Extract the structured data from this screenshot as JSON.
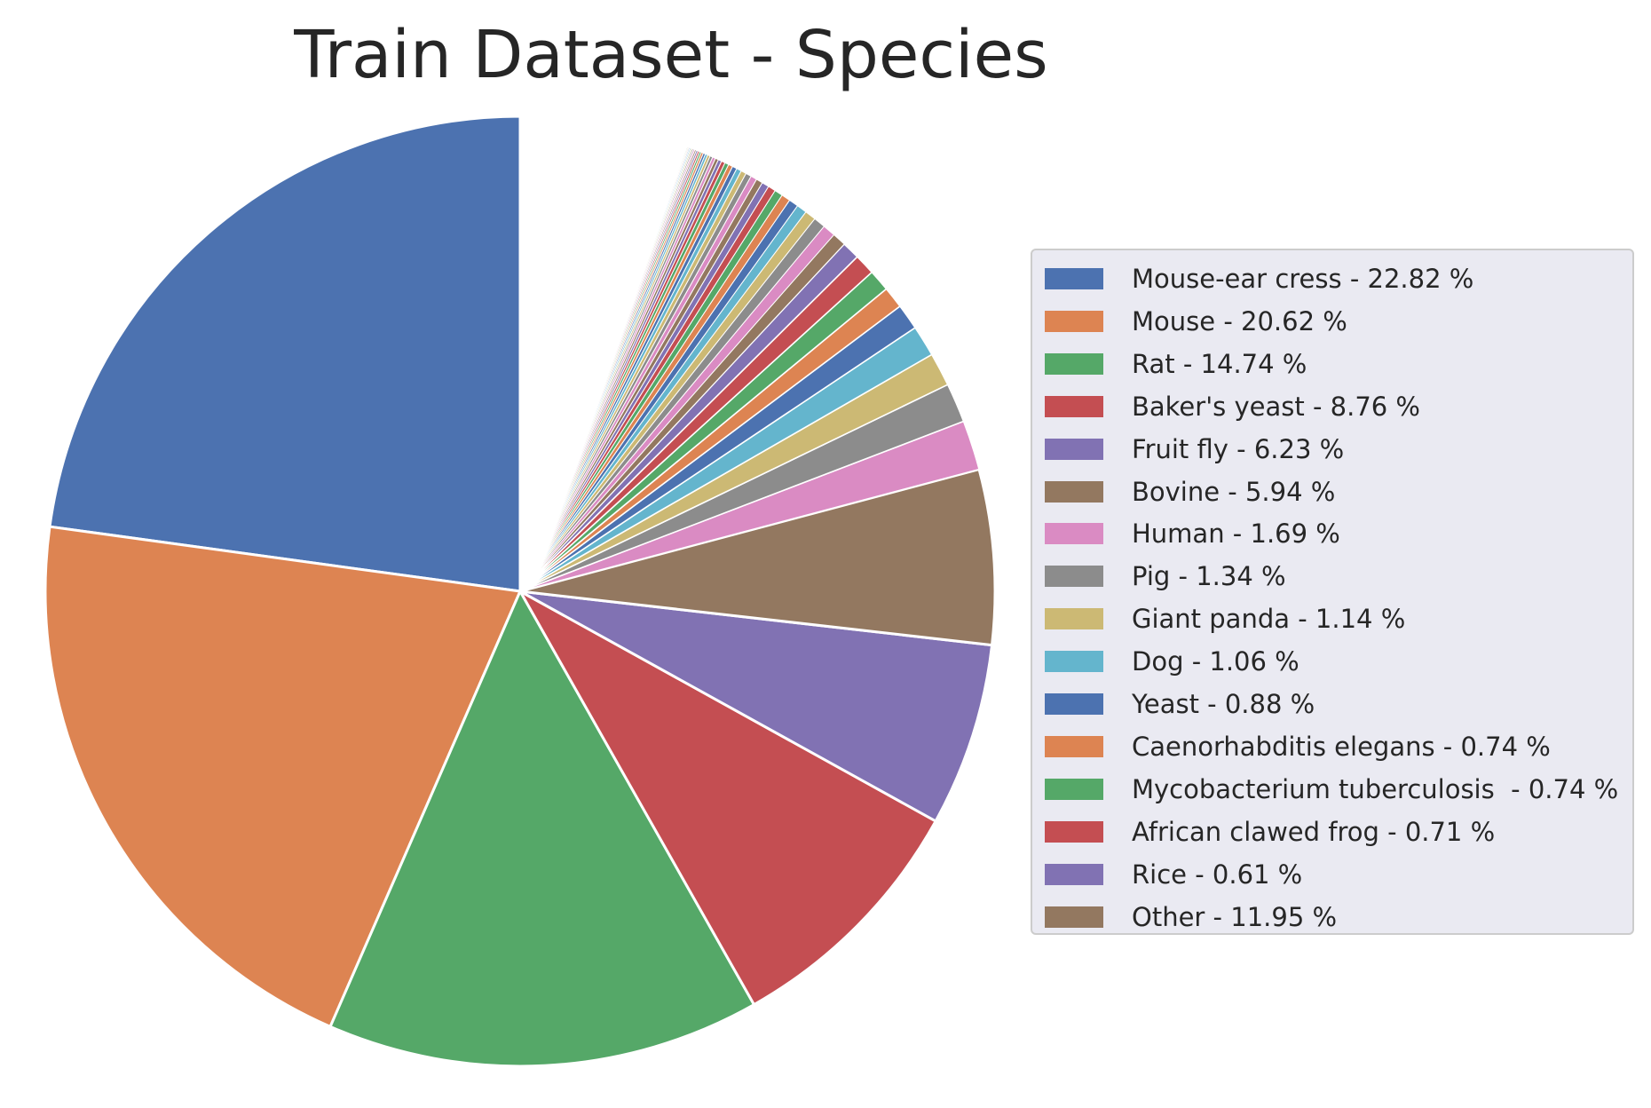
{
  "chart_data": {
    "type": "pie",
    "title": "Train Dataset - Species",
    "legend_position": "right",
    "start_angle_deg": 90,
    "direction": "counterclockwise",
    "slices": [
      {
        "label": "Mouse-ear cress - 22.82 %",
        "value": 22.82,
        "color": "#4c72b0"
      },
      {
        "label": "Mouse - 20.62 %",
        "value": 20.62,
        "color": "#dd8452"
      },
      {
        "label": "Rat - 14.74 %",
        "value": 14.74,
        "color": "#55a868"
      },
      {
        "label": "Baker's yeast - 8.76 %",
        "value": 8.76,
        "color": "#c44e52"
      },
      {
        "label": "Fruit fly - 6.23 %",
        "value": 6.23,
        "color": "#8172b3"
      },
      {
        "label": "Bovine - 5.94 %",
        "value": 5.94,
        "color": "#937860"
      },
      {
        "label": "Human - 1.69 %",
        "value": 1.69,
        "color": "#da8bc3"
      },
      {
        "label": "Pig - 1.34 %",
        "value": 1.34,
        "color": "#8c8c8c"
      },
      {
        "label": "Giant panda - 1.14 %",
        "value": 1.14,
        "color": "#ccb974"
      },
      {
        "label": "Dog - 1.06 %",
        "value": 1.06,
        "color": "#64b5cd"
      },
      {
        "label": "Yeast - 0.88 %",
        "value": 0.88,
        "color": "#4c72b0"
      },
      {
        "label": "Caenorhabditis elegans - 0.74 %",
        "value": 0.74,
        "color": "#dd8452"
      },
      {
        "label": "Mycobacterium tuberculosis  - 0.74 %",
        "value": 0.74,
        "color": "#55a868"
      },
      {
        "label": "African clawed frog - 0.71 %",
        "value": 0.71,
        "color": "#c44e52"
      },
      {
        "label": "Rice - 0.61 %",
        "value": 0.61,
        "color": "#8172b3"
      },
      {
        "label": "Other - 11.95 %",
        "value": 11.95,
        "color": "#937860",
        "render": "fan",
        "fan_slices": 60
      }
    ],
    "palette": [
      "#4c72b0",
      "#dd8452",
      "#55a868",
      "#c44e52",
      "#8172b3",
      "#937860",
      "#da8bc3",
      "#8c8c8c",
      "#ccb974",
      "#64b5cd"
    ]
  }
}
